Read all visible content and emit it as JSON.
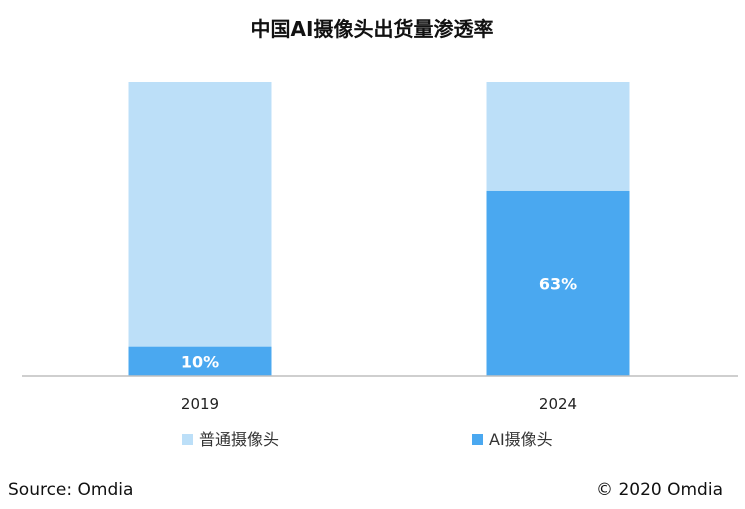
{
  "chart_data": {
    "type": "bar",
    "stacked": true,
    "title": "中国AI摄像头出货量渗透率",
    "categories": [
      "2019",
      "2024"
    ],
    "series": [
      {
        "name": "AI摄像头",
        "values": [
          10,
          63
        ],
        "labels": [
          "10%",
          "63%"
        ],
        "color": "#4aa8f0"
      },
      {
        "name": "普通摄像头",
        "values": [
          90,
          37
        ],
        "color": "#bcdff8"
      }
    ],
    "ylim": [
      0,
      100
    ],
    "unit": "%",
    "legend": [
      "普通摄像头",
      "AI摄像头"
    ],
    "legend_position": "bottom",
    "grid": false
  },
  "footer": {
    "source": "Source: Omdia",
    "copyright": "© 2020 Omdia"
  },
  "colors": {
    "ai_camera": "#4aa8f0",
    "regular_camera": "#bcdff8",
    "axis": "#bfbfbf"
  }
}
